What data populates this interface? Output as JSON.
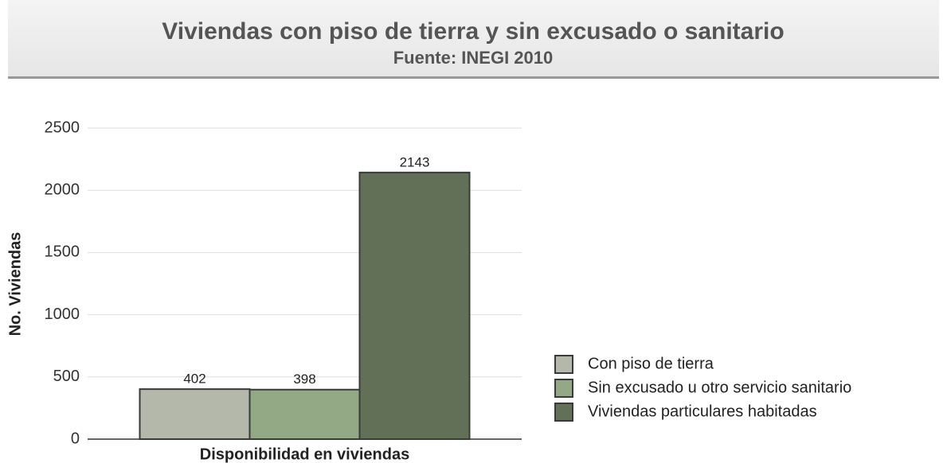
{
  "chart_data": {
    "type": "bar",
    "title": "Viviendas con piso de tierra y sin excusado o sanitario",
    "subtitle": "Fuente: INEGI 2010",
    "y_label": "No. Viviendas",
    "categories": [
      "Disponibilidad en viviendas"
    ],
    "series": [
      {
        "name": "Con piso de tierra",
        "color": "#b3b8aa",
        "values": [
          402
        ]
      },
      {
        "name": "Sin excusado u otro servicio sanitario",
        "color": "#93a885",
        "values": [
          398
        ]
      },
      {
        "name": "Viviendas particulares habitadas",
        "color": "#637058",
        "values": [
          2143
        ]
      }
    ],
    "ylim": [
      0,
      2500
    ],
    "yticks": [
      0,
      500,
      1000,
      1500,
      2000,
      2500
    ],
    "grid": true,
    "legend": "right"
  }
}
